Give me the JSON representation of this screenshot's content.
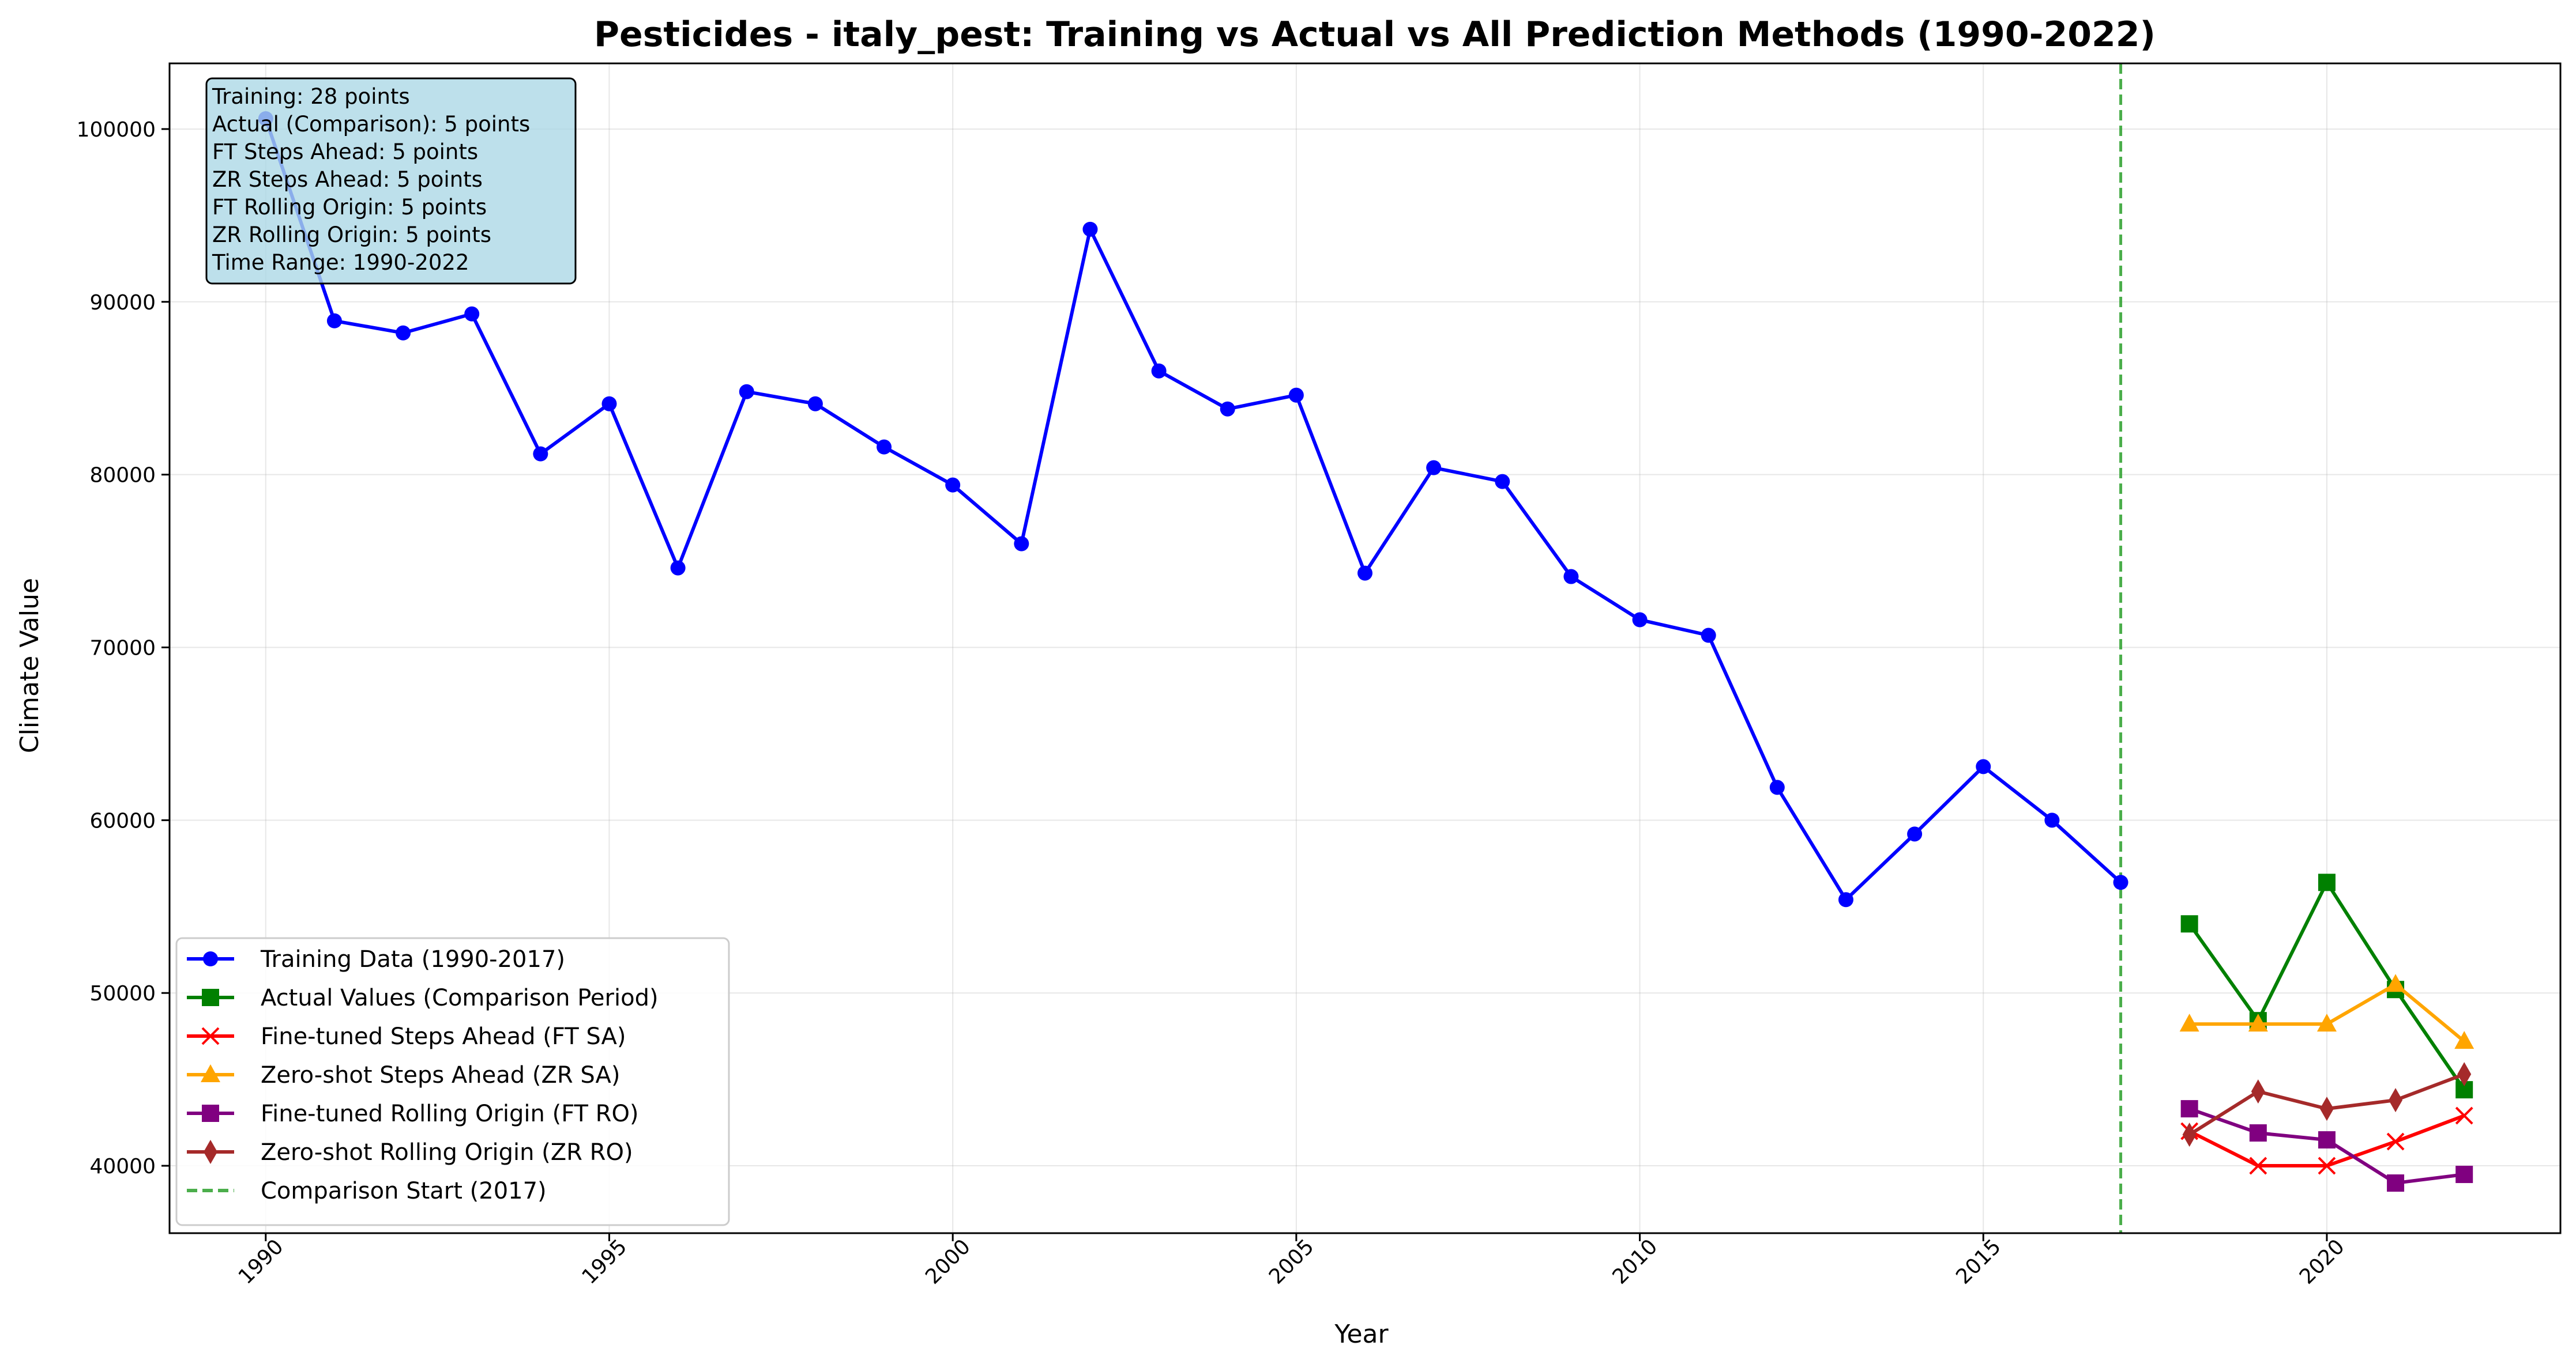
{
  "chart_data": {
    "type": "line",
    "title": "Pesticides - italy_pest: Training vs Actual vs All Prediction Methods (1990-2022)",
    "xlabel": "Year",
    "ylabel": "Climate Value",
    "xlim": [
      1988.6,
      2023.4
    ],
    "ylim": [
      36100,
      103800
    ],
    "x_ticks": [
      1990,
      1995,
      2000,
      2005,
      2010,
      2015,
      2020
    ],
    "y_ticks": [
      40000,
      50000,
      60000,
      70000,
      80000,
      90000,
      100000
    ],
    "grid": true,
    "legend_position": "lower-left",
    "vline": {
      "x": 2017,
      "label": "Comparison Start (2017)",
      "color": "#2ca02c"
    },
    "series": [
      {
        "name": "Training Data (1990-2017)",
        "color": "#0000ff",
        "marker": "circle",
        "x": [
          1990,
          1991,
          1992,
          1993,
          1994,
          1995,
          1996,
          1997,
          1998,
          1999,
          2000,
          2001,
          2002,
          2003,
          2004,
          2005,
          2006,
          2007,
          2008,
          2009,
          2010,
          2011,
          2012,
          2013,
          2014,
          2015,
          2016,
          2017
        ],
        "y": [
          100600,
          88900,
          88200,
          89300,
          81200,
          84100,
          74600,
          84800,
          84100,
          81600,
          79400,
          76000,
          94200,
          86000,
          83800,
          84600,
          74300,
          80400,
          79600,
          74100,
          71600,
          70700,
          61900,
          55400,
          59200,
          63100,
          60000,
          56400
        ]
      },
      {
        "name": "Actual Values (Comparison Period)",
        "color": "#008000",
        "marker": "square",
        "x": [
          2018,
          2019,
          2020,
          2021,
          2022
        ],
        "y": [
          54000,
          48400,
          56400,
          50200,
          44400
        ]
      },
      {
        "name": "Fine-tuned Steps Ahead (FT SA)",
        "color": "#ff0000",
        "marker": "x",
        "x": [
          2018,
          2019,
          2020,
          2021,
          2022
        ],
        "y": [
          42000,
          40000,
          40000,
          41400,
          42900
        ]
      },
      {
        "name": "Zero-shot Steps Ahead (ZR SA)",
        "color": "#ffa500",
        "marker": "triangle",
        "x": [
          2018,
          2019,
          2020,
          2021,
          2022
        ],
        "y": [
          48200,
          48200,
          48200,
          50500,
          47200
        ]
      },
      {
        "name": "Fine-tuned Rolling Origin (FT RO)",
        "color": "#800080",
        "marker": "square",
        "x": [
          2018,
          2019,
          2020,
          2021,
          2022
        ],
        "y": [
          43300,
          41900,
          41500,
          39000,
          39500
        ]
      },
      {
        "name": "Zero-shot Rolling Origin (ZR RO)",
        "color": "#a52a2a",
        "marker": "diamond",
        "x": [
          2018,
          2019,
          2020,
          2021,
          2022
        ],
        "y": [
          41800,
          44300,
          43300,
          43800,
          45300
        ]
      }
    ],
    "info_box": [
      "Training: 28 points",
      "Actual (Comparison): 5 points",
      "FT Steps Ahead: 5 points",
      "ZR Steps Ahead: 5 points",
      "FT Rolling Origin: 5 points",
      "ZR Rolling Origin: 5 points",
      "Time Range: 1990-2022"
    ]
  }
}
